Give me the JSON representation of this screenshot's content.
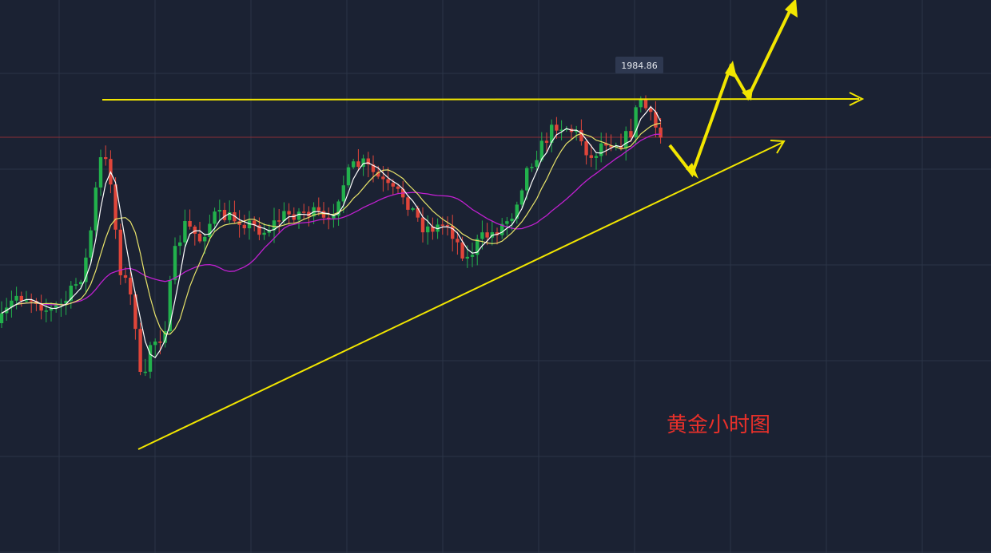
{
  "chart_data": {
    "type": "candlestick",
    "title": "黄金小时图",
    "price_label": "1984.86",
    "colors": {
      "background": "#1b2233",
      "grid": "#2b3447",
      "up": "#22b14c",
      "down": "#e0453a",
      "ma_fast": "#ffffff",
      "ma_mid": "#e8e36a",
      "ma_slow": "#c020d0",
      "annotation": "#f2e600",
      "title": "#e8302a",
      "price_line": "#8b2f36"
    },
    "annotations": [
      "horizontal-resistance-line",
      "ascending-trendline",
      "projected-path-arrows"
    ]
  }
}
